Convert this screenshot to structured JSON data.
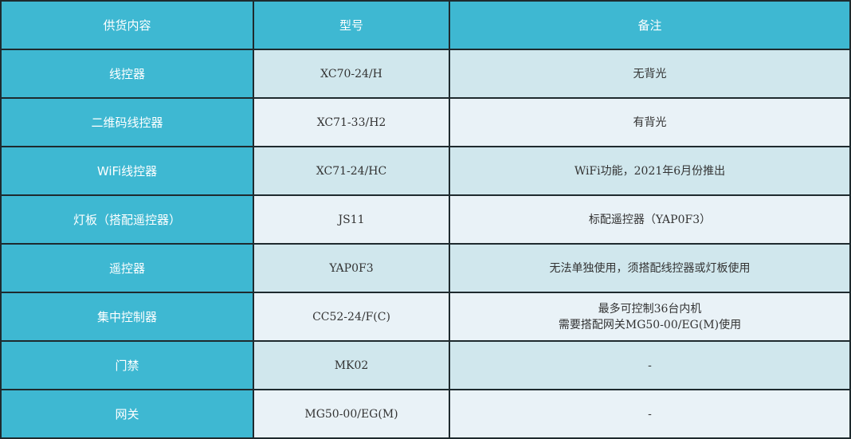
{
  "headers": [
    "供货内容",
    "型号",
    "备注"
  ],
  "rows": [
    {
      "name": "线控器",
      "model": "XC70-24/H",
      "note": "无背光"
    },
    {
      "name": "二维码线控器",
      "model": "XC71-33/H2",
      "note": "有背光"
    },
    {
      "name": "WiFi线控器",
      "model": "XC71-24/HC",
      "note": "WiFi功能，2021年6月份推出"
    },
    {
      "name": "灯板（搭配遥控器）",
      "model": "JS11",
      "note": "标配遥控器（YAP0F3）"
    },
    {
      "name": "遥控器",
      "model": "YAP0F3",
      "note": "无法单独使用，须搭配线控器或灯板使用"
    },
    {
      "name": "集中控制器",
      "model": "CC52-24/F(C)",
      "note": "最多可控制36台内机",
      "note2": "需要搭配网关MG50-00/EG(M)使用"
    },
    {
      "name": "门禁",
      "model": "MK02",
      "note": "-"
    },
    {
      "name": "网关",
      "model": "MG50-00/EG(M)",
      "note": "-"
    }
  ],
  "colors": {
    "header": "#3eb8d2",
    "row_a": "#d0e7ed",
    "row_b": "#e9f2f7"
  }
}
